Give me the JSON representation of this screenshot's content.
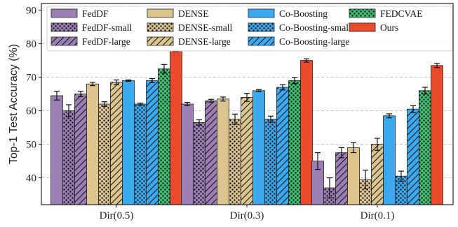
{
  "chart_data": {
    "type": "bar",
    "categories": [
      "Dir(0.5)",
      "Dir(0.3)",
      "Dir(0.1)"
    ],
    "ylabel": "Top-1 Test Accuracy (%)",
    "xlabel": "",
    "ylim": [
      32,
      92
    ],
    "yticks": [
      40,
      50,
      60,
      70,
      80,
      90
    ],
    "grid": "horizontal dashed",
    "legend_position": "top, 4 columns",
    "series": [
      {
        "name": "FedDF",
        "color": "#9b7fb5",
        "pattern": "solid",
        "values": [
          64.5,
          62.0,
          45.0
        ],
        "errors": [
          1.3,
          0.5,
          2.5
        ]
      },
      {
        "name": "FedDF-small",
        "color": "#9b7fb5",
        "pattern": "dots",
        "values": [
          60.0,
          56.5,
          37.0
        ],
        "errors": [
          1.8,
          0.8,
          3.0
        ]
      },
      {
        "name": "FedDF-large",
        "color": "#9b7fb5",
        "pattern": "hatch",
        "values": [
          65.0,
          63.0,
          47.5
        ],
        "errors": [
          0.8,
          0.4,
          1.5
        ]
      },
      {
        "name": "DENSE",
        "color": "#dcc48e",
        "pattern": "solid",
        "values": [
          68.0,
          63.5,
          49.0
        ],
        "errors": [
          0.5,
          0.6,
          1.5
        ]
      },
      {
        "name": "DENSE-small",
        "color": "#dcc48e",
        "pattern": "dots",
        "values": [
          62.0,
          57.5,
          39.5
        ],
        "errors": [
          0.7,
          1.5,
          2.8
        ]
      },
      {
        "name": "DENSE-large",
        "color": "#dcc48e",
        "pattern": "hatch",
        "values": [
          68.5,
          64.0,
          50.0
        ],
        "errors": [
          0.7,
          1.2,
          1.8
        ]
      },
      {
        "name": "Co-Boosting",
        "color": "#3aa9ef",
        "pattern": "solid",
        "values": [
          69.0,
          66.0,
          58.5
        ],
        "errors": [
          0.2,
          0.3,
          0.6
        ]
      },
      {
        "name": "Co-Boosting-small",
        "color": "#3aa9ef",
        "pattern": "dots",
        "values": [
          62.0,
          57.5,
          40.5
        ],
        "errors": [
          0.3,
          0.9,
          1.5
        ]
      },
      {
        "name": "Co-Boosting-large",
        "color": "#3aa9ef",
        "pattern": "hatch",
        "values": [
          69.0,
          67.0,
          60.5
        ],
        "errors": [
          0.6,
          0.8,
          1.0
        ]
      },
      {
        "name": "FEDCVAE",
        "color": "#3fbf72",
        "pattern": "dots",
        "values": [
          72.5,
          69.0,
          66.0
        ],
        "errors": [
          1.3,
          0.9,
          1.0
        ]
      },
      {
        "name": "Ours",
        "color": "#ea4b2c",
        "pattern": "solid",
        "values": [
          78.0,
          75.0,
          73.5
        ],
        "errors": [
          0.3,
          0.5,
          0.6
        ]
      }
    ]
  }
}
